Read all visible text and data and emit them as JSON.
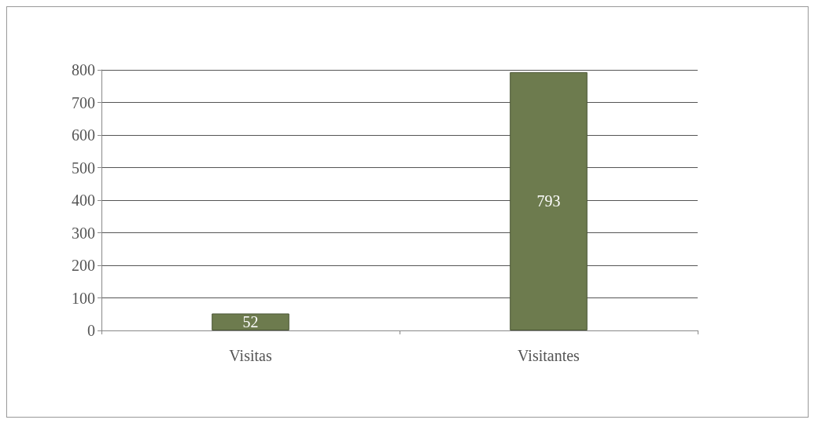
{
  "chart_data": {
    "type": "bar",
    "categories": [
      "Visitas",
      "Visitantes"
    ],
    "values": [
      52,
      793
    ],
    "color": "#6d7b4e",
    "ylim": [
      0,
      800
    ],
    "yticks": [
      0,
      100,
      200,
      300,
      400,
      500,
      600,
      700,
      800
    ],
    "grid": "y",
    "data_labels": true
  }
}
